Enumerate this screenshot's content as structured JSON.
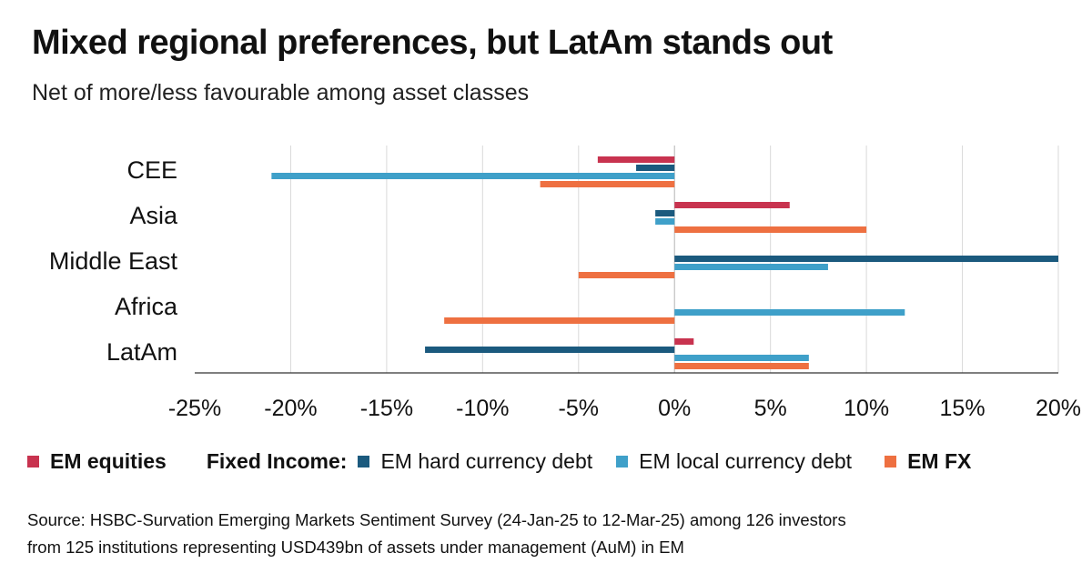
{
  "title": "Mixed regional preferences, but LatAm stands out",
  "subtitle": "Net of more/less favourable among asset classes",
  "legend": {
    "equities": "EM equities",
    "fixed_income_label": "Fixed Income:",
    "hard": "EM hard currency debt",
    "local": "EM local currency debt",
    "fx": "EM FX"
  },
  "source": {
    "line1": "Source: HSBC-Survation Emerging Markets Sentiment Survey (24-Jan-25 to 12-Mar-25) among 126 investors",
    "line2": "from 125 institutions representing USD439bn of assets under management (AuM) in EM"
  },
  "chart_data": {
    "type": "bar",
    "orientation": "horizontal",
    "categories": [
      "CEE",
      "Asia",
      "Middle East",
      "Africa",
      "LatAm"
    ],
    "series": [
      {
        "name": "EM equities",
        "color": "#c8334f",
        "values": [
          -4,
          6,
          0,
          0,
          1
        ]
      },
      {
        "name": "EM hard currency debt",
        "color": "#1b5a7e",
        "values": [
          -2,
          -1,
          20,
          0,
          -13
        ]
      },
      {
        "name": "EM local currency debt",
        "color": "#3fa0c9",
        "values": [
          -21,
          -1,
          8,
          12,
          7
        ]
      },
      {
        "name": "EM FX",
        "color": "#ee7041",
        "values": [
          -7,
          10,
          -5,
          -12,
          7
        ]
      }
    ],
    "xlim": [
      -25,
      20
    ],
    "xticks": [
      -25,
      -20,
      -15,
      -10,
      -5,
      0,
      5,
      10,
      15,
      20
    ],
    "tick_labels": [
      "-25%",
      "-20%",
      "-15%",
      "-10%",
      "-5%",
      "0%",
      "5%",
      "10%",
      "15%",
      "20%"
    ],
    "grid": "vertical",
    "legend_position": "bottom"
  }
}
